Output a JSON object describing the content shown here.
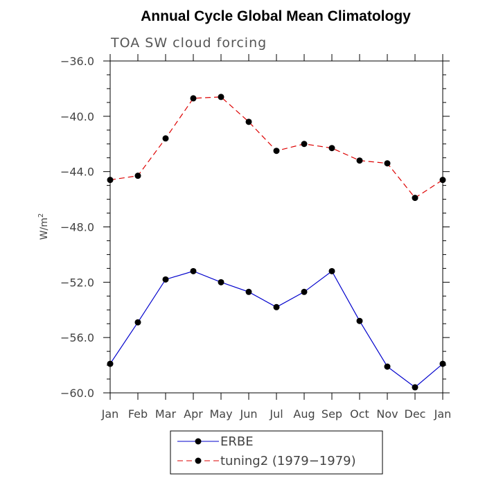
{
  "chart_data": {
    "type": "line",
    "title": "Annual Cycle Global Mean Climatology",
    "subtitle": "TOA SW cloud forcing",
    "ylabel": "W/m",
    "ylabel_sup": "2",
    "xlabel": "",
    "categories": [
      "Jan",
      "Feb",
      "Mar",
      "Apr",
      "May",
      "Jun",
      "Jul",
      "Aug",
      "Sep",
      "Oct",
      "Nov",
      "Dec",
      "Jan"
    ],
    "ylim": [
      -60,
      -36
    ],
    "yticks": [
      -36,
      -40,
      -44,
      -48,
      -52,
      -56,
      -60
    ],
    "ytick_labels": [
      "−36.0",
      "−40.0",
      "−44.0",
      "−48.0",
      "−52.0",
      "−56.0",
      "−60.0"
    ],
    "series": [
      {
        "name": "ERBE",
        "color": "#0000cc",
        "dash": "solid",
        "values": [
          -57.9,
          -54.9,
          -51.8,
          -51.2,
          -52.0,
          -52.7,
          -53.8,
          -52.7,
          -51.2,
          -54.8,
          -58.1,
          -59.6,
          -57.9
        ]
      },
      {
        "name": "tuning2 (1979−1979)",
        "color": "#dd0000",
        "dash": "dashed",
        "values": [
          -44.6,
          -44.3,
          -41.6,
          -38.7,
          -38.6,
          -40.4,
          -42.5,
          -42.0,
          -42.3,
          -43.2,
          -43.4,
          -45.9,
          -44.6
        ]
      }
    ],
    "grid": false,
    "legend_position": "bottom-center"
  }
}
